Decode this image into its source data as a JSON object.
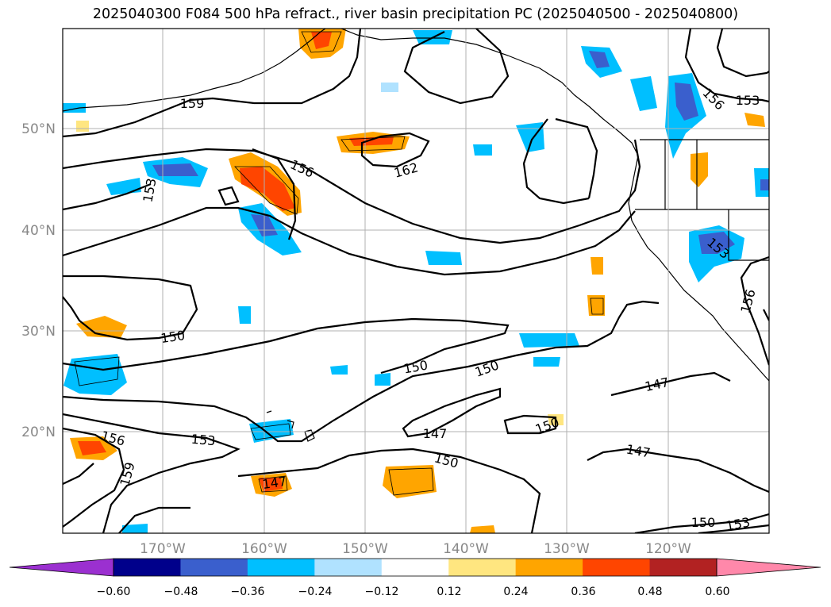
{
  "title": "2025040300 F084 500 hPa refract., river basin precipitation PC (2025040500 - 2025040800)",
  "lat_labels": [
    "50°N",
    "40°N",
    "30°N",
    "20°N"
  ],
  "lon_labels": [
    "170°W",
    "160°W",
    "150°W",
    "140°W",
    "130°W",
    "120°W"
  ],
  "contour_labels": [
    "159",
    "156",
    "153",
    "162",
    "156",
    "153",
    "153",
    "150",
    "150",
    "150",
    "156",
    "147",
    "150",
    "147",
    "147",
    "156",
    "153",
    "159",
    "147",
    "150",
    "150",
    "153"
  ],
  "colorbar": {
    "ticks": [
      "−0.60",
      "−0.48",
      "−0.36",
      "−0.24",
      "−0.12",
      "0.12",
      "0.24",
      "0.36",
      "0.48",
      "0.60"
    ],
    "colors": [
      "#9b30d0",
      "#00008b",
      "#3a5fcd",
      "#00bfff",
      "#b0e2ff",
      "#ffffff",
      "#ffe680",
      "#ffa500",
      "#ff4500",
      "#b22222",
      "#ff88aa"
    ]
  },
  "colors": {
    "contour": "#000000",
    "grid": "#b0b0b0",
    "axis_label": "#888888"
  }
}
